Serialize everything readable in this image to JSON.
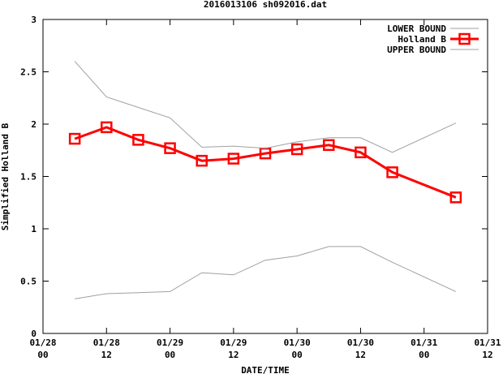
{
  "chart_data": {
    "type": "line",
    "title": "2016013106 sh092016.dat",
    "xlabel": "DATE/TIME",
    "ylabel": "Simplified Holland B",
    "xlim": [
      0,
      84
    ],
    "ylim": [
      0,
      3
    ],
    "x_tick_labels": [
      {
        "x": 0,
        "line1": "01/28",
        "line2": "00"
      },
      {
        "x": 12,
        "line1": "01/28",
        "line2": "12"
      },
      {
        "x": 24,
        "line1": "01/29",
        "line2": "00"
      },
      {
        "x": 36,
        "line1": "01/29",
        "line2": "12"
      },
      {
        "x": 48,
        "line1": "01/30",
        "line2": "00"
      },
      {
        "x": 60,
        "line1": "01/30",
        "line2": "12"
      },
      {
        "x": 72,
        "line1": "01/31",
        "line2": "00"
      },
      {
        "x": 84,
        "line1": "01/31",
        "line2": "12"
      }
    ],
    "y_ticks": [
      0,
      0.5,
      1,
      1.5,
      2,
      2.5,
      3
    ],
    "y_tick_labels": [
      "0",
      "0.5",
      "1",
      "1.5",
      "2",
      "2.5",
      "3"
    ],
    "legend_position": "top-right",
    "series": [
      {
        "name": "LOWER BOUND",
        "color": "#a0a0a0",
        "x": [
          6,
          12,
          18,
          24,
          30,
          36,
          42,
          48,
          54,
          60,
          66,
          78
        ],
        "values": [
          0.33,
          0.38,
          0.39,
          0.4,
          0.58,
          0.56,
          0.7,
          0.74,
          0.83,
          0.83,
          0.68,
          0.4
        ]
      },
      {
        "name": "Holland B",
        "color": "#ff0000",
        "marker": "square",
        "x": [
          6,
          12,
          18,
          24,
          30,
          36,
          42,
          48,
          54,
          60,
          66,
          78
        ],
        "values": [
          1.86,
          1.97,
          1.85,
          1.77,
          1.65,
          1.67,
          1.72,
          1.76,
          1.8,
          1.73,
          1.54,
          1.3
        ]
      },
      {
        "name": "UPPER BOUND",
        "color": "#a0a0a0",
        "x": [
          6,
          12,
          18,
          24,
          30,
          36,
          42,
          48,
          54,
          60,
          66,
          78
        ],
        "values": [
          2.6,
          2.26,
          2.16,
          2.06,
          1.78,
          1.79,
          1.77,
          1.83,
          1.87,
          1.87,
          1.73,
          2.01
        ]
      }
    ]
  }
}
